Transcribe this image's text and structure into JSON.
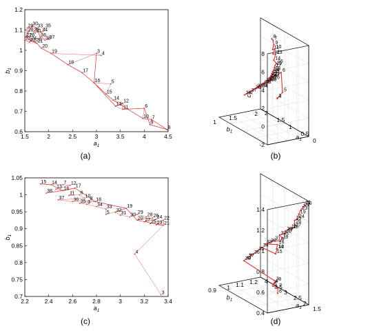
{
  "captions": [
    "(a)",
    "(b)",
    "(c)",
    "(d)"
  ],
  "chart_data": [
    {
      "type": "line",
      "panel": "a",
      "xlabel": "a1",
      "ylabel": "b1",
      "xlim": [
        1.5,
        4.5
      ],
      "ylim": [
        0.6,
        1.2
      ],
      "xticks": [
        "1.5",
        "2",
        "2.5",
        "3",
        "3.5",
        "4",
        "4.5"
      ],
      "yticks": [
        "0.6",
        "0.7",
        "0.8",
        "0.9",
        "1",
        "1.1",
        "1.2"
      ],
      "line_color": "#e03030",
      "points": [
        {
          "label": "8",
          "x": 4.48,
          "y": 0.61
        },
        {
          "label": "9",
          "x": 4.12,
          "y": 0.635
        },
        {
          "label": "7",
          "x": 4.15,
          "y": 0.66
        },
        {
          "label": "10",
          "x": 3.97,
          "y": 0.665
        },
        {
          "label": "6",
          "x": 4.0,
          "y": 0.715
        },
        {
          "label": "11",
          "x": 3.55,
          "y": 0.71
        },
        {
          "label": "13",
          "x": 3.4,
          "y": 0.725
        },
        {
          "label": "12",
          "x": 3.55,
          "y": 0.74
        },
        {
          "label": "14",
          "x": 3.35,
          "y": 0.755
        },
        {
          "label": "15",
          "x": 3.2,
          "y": 0.785
        },
        {
          "label": "5",
          "x": 3.3,
          "y": 0.835
        },
        {
          "label": "16",
          "x": 2.95,
          "y": 0.84
        },
        {
          "label": "17",
          "x": 2.7,
          "y": 0.89
        },
        {
          "label": "18",
          "x": 2.4,
          "y": 0.93
        },
        {
          "label": "3",
          "x": 3.0,
          "y": 0.985
        },
        {
          "label": "4",
          "x": 3.1,
          "y": 0.975
        },
        {
          "label": "19",
          "x": 2.05,
          "y": 0.985
        },
        {
          "label": "20",
          "x": 1.85,
          "y": 1.01
        },
        {
          "label": "21",
          "x": 1.75,
          "y": 1.035
        },
        {
          "label": "22",
          "x": 1.5,
          "y": 1.05
        },
        {
          "label": "23",
          "x": 1.6,
          "y": 1.04
        },
        {
          "label": "24",
          "x": 1.62,
          "y": 1.05
        },
        {
          "label": "25",
          "x": 1.72,
          "y": 1.04
        },
        {
          "label": "26",
          "x": 1.58,
          "y": 1.065
        },
        {
          "label": "27",
          "x": 1.52,
          "y": 1.065
        },
        {
          "label": "28",
          "x": 1.55,
          "y": 1.09
        },
        {
          "label": "29",
          "x": 1.55,
          "y": 1.11
        },
        {
          "label": "30",
          "x": 1.65,
          "y": 1.12
        },
        {
          "label": "31",
          "x": 1.72,
          "y": 1.085
        },
        {
          "label": "32",
          "x": 1.68,
          "y": 1.09
        },
        {
          "label": "33",
          "x": 1.75,
          "y": 1.11
        },
        {
          "label": "34",
          "x": 1.85,
          "y": 1.09
        },
        {
          "label": "35",
          "x": 1.92,
          "y": 1.11
        },
        {
          "label": "36",
          "x": 1.82,
          "y": 1.065
        },
        {
          "label": "37",
          "x": 2.0,
          "y": 1.055
        },
        {
          "label": "38",
          "x": 1.92,
          "y": 1.05
        }
      ],
      "path": [
        "3",
        "16",
        "13",
        "12",
        "11",
        "6",
        "9",
        "8",
        "7",
        "10",
        "14",
        "15",
        "16",
        "17",
        "18",
        "19",
        "20",
        "21",
        "24",
        "27",
        "30",
        "33",
        "36",
        "38"
      ]
    },
    {
      "type": "line3d",
      "panel": "b",
      "xlabel": "a1",
      "ylabel": "b1",
      "zlabel": "c1",
      "xlim": [
        0,
        2
      ],
      "ylim": [
        0.5,
        2
      ],
      "zlim": [
        -2,
        8
      ],
      "xticks": [
        "0",
        "0.5",
        "1",
        "1.5",
        "2"
      ],
      "yticks": [
        "1",
        "1.5",
        "2"
      ],
      "zticks": [
        "-2",
        "0",
        "2",
        "4",
        "6",
        "8"
      ],
      "line_color": "#e03030",
      "labels": [
        "8",
        "7",
        "9",
        "11",
        "10",
        "12",
        "13",
        "14",
        "16",
        "15",
        "17",
        "18",
        "19",
        "20",
        "21",
        "22",
        "23",
        "24",
        "25",
        "26",
        "27",
        "28",
        "29",
        "30",
        "31",
        "32",
        "33",
        "34",
        "35",
        "36",
        "37",
        "38",
        "6",
        "5",
        "4",
        "3"
      ]
    },
    {
      "type": "line",
      "panel": "c",
      "xlabel": "a1",
      "ylabel": "b1",
      "xlim": [
        2.2,
        3.4
      ],
      "ylim": [
        0.7,
        1.05
      ],
      "xticks": [
        "2.2",
        "2.4",
        "2.6",
        "2.8",
        "3",
        "3.2",
        "3.4"
      ],
      "yticks": [
        "0.7",
        "0.75",
        "0.8",
        "0.85",
        "0.9",
        "0.95",
        "1",
        "1.05"
      ],
      "line_color": "#e03030",
      "points": [
        {
          "label": "15",
          "x": 2.33,
          "y": 1.032
        },
        {
          "label": "14",
          "x": 2.42,
          "y": 1.03
        },
        {
          "label": "7",
          "x": 2.52,
          "y": 1.03
        },
        {
          "label": "12",
          "x": 2.58,
          "y": 1.028
        },
        {
          "label": "13",
          "x": 2.46,
          "y": 1.017
        },
        {
          "label": "16",
          "x": 2.52,
          "y": 1.012
        },
        {
          "label": "38",
          "x": 2.38,
          "y": 1.005
        },
        {
          "label": "17",
          "x": 2.62,
          "y": 1.02
        },
        {
          "label": "11",
          "x": 2.57,
          "y": 0.998
        },
        {
          "label": "6",
          "x": 2.66,
          "y": 1.0
        },
        {
          "label": "10",
          "x": 2.7,
          "y": 0.99
        },
        {
          "label": "37",
          "x": 2.48,
          "y": 0.985
        },
        {
          "label": "36",
          "x": 2.6,
          "y": 0.98
        },
        {
          "label": "8",
          "x": 2.74,
          "y": 0.983
        },
        {
          "label": "18",
          "x": 2.79,
          "y": 0.98
        },
        {
          "label": "35",
          "x": 2.66,
          "y": 0.975
        },
        {
          "label": "9",
          "x": 2.72,
          "y": 0.972
        },
        {
          "label": "34",
          "x": 2.8,
          "y": 0.965
        },
        {
          "label": "33",
          "x": 2.88,
          "y": 0.958
        },
        {
          "label": "5",
          "x": 2.88,
          "y": 0.942
        },
        {
          "label": "19",
          "x": 3.05,
          "y": 0.96
        },
        {
          "label": "32",
          "x": 2.96,
          "y": 0.948
        },
        {
          "label": "31",
          "x": 3.0,
          "y": 0.94
        },
        {
          "label": "30",
          "x": 3.08,
          "y": 0.935
        },
        {
          "label": "29",
          "x": 3.14,
          "y": 0.942
        },
        {
          "label": "28",
          "x": 3.22,
          "y": 0.935
        },
        {
          "label": "20",
          "x": 3.14,
          "y": 0.925
        },
        {
          "label": "26",
          "x": 3.27,
          "y": 0.932
        },
        {
          "label": "27",
          "x": 3.2,
          "y": 0.92
        },
        {
          "label": "24",
          "x": 3.3,
          "y": 0.928
        },
        {
          "label": "25",
          "x": 3.25,
          "y": 0.915
        },
        {
          "label": "22",
          "x": 3.36,
          "y": 0.925
        },
        {
          "label": "23",
          "x": 3.3,
          "y": 0.912
        },
        {
          "label": "21",
          "x": 3.36,
          "y": 0.91
        },
        {
          "label": "4",
          "x": 3.12,
          "y": 0.825
        },
        {
          "label": "3",
          "x": 3.34,
          "y": 0.705
        }
      ],
      "path": [
        "15",
        "14",
        "16",
        "17",
        "18",
        "19",
        "20",
        "21",
        "22"
      ]
    },
    {
      "type": "line3d",
      "panel": "d",
      "xlabel": "a1",
      "ylabel": "b1",
      "zlabel": "c1",
      "xlim": [
        1.5,
        4
      ],
      "ylim": [
        0.9,
        1.2
      ],
      "zlim": [
        0.4,
        1.4
      ],
      "xticks": [
        "1.5",
        "2",
        "2.5",
        "3",
        "3.5",
        "4"
      ],
      "yticks": [
        "0.9",
        "1",
        "1.1",
        "1.2"
      ],
      "zticks": [
        "0.4",
        "0.6",
        "0.8",
        "1",
        "1.2",
        "1.4"
      ],
      "line_color": "#e03030",
      "labels": [
        "21",
        "20",
        "22",
        "23",
        "19",
        "24",
        "25",
        "26",
        "27",
        "28",
        "18",
        "29",
        "17",
        "10",
        "30",
        "12",
        "11",
        "9",
        "31",
        "32",
        "33",
        "16",
        "14",
        "13",
        "15",
        "34",
        "35",
        "36",
        "37",
        "38",
        "3",
        "8",
        "4",
        "5",
        "7",
        "6"
      ]
    }
  ]
}
